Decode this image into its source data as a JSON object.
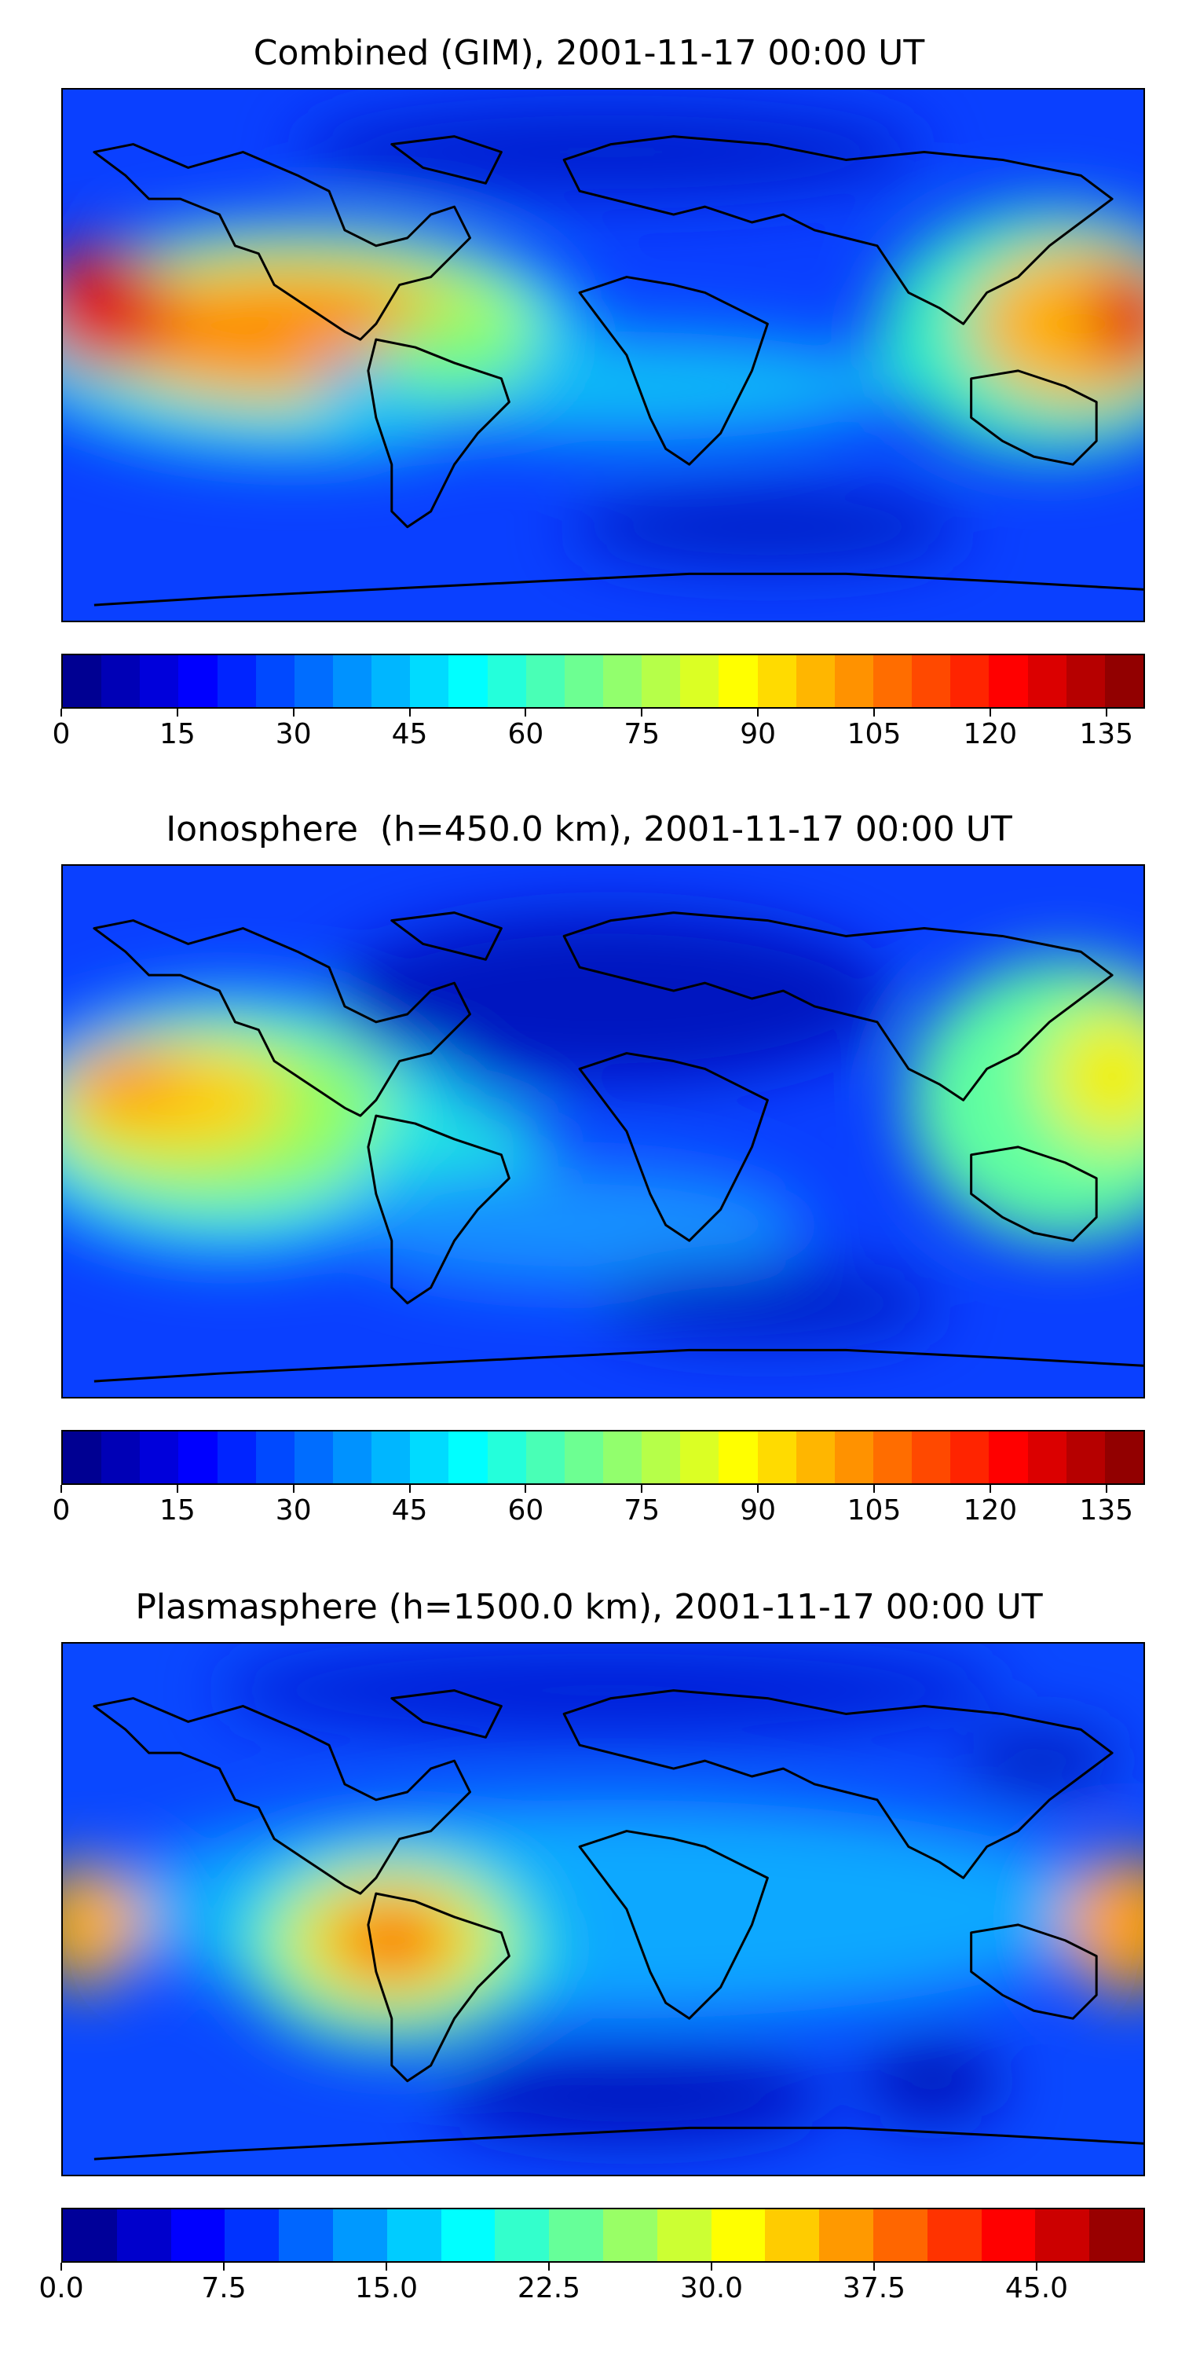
{
  "panels": [
    {
      "title": "Combined (GIM), 2001-11-17 00:00 UT",
      "colorbar_ticks": [
        "0",
        "15",
        "30",
        "45",
        "60",
        "75",
        "90",
        "105",
        "120",
        "135"
      ],
      "colorbar_range": [
        0,
        140
      ],
      "colorbar_levels": 28
    },
    {
      "title": "Ionosphere  (h=450.0 km), 2001-11-17 00:00 UT",
      "colorbar_ticks": [
        "0",
        "15",
        "30",
        "45",
        "60",
        "75",
        "90",
        "105",
        "120",
        "135"
      ],
      "colorbar_range": [
        0,
        140
      ],
      "colorbar_levels": 28
    },
    {
      "title": "Plasmasphere (h=1500.0 km), 2001-11-17 00:00 UT",
      "colorbar_ticks": [
        "0.0",
        "7.5",
        "15.0",
        "22.5",
        "30.0",
        "37.5",
        "45.0"
      ],
      "colorbar_range": [
        0,
        50
      ],
      "colorbar_levels": 20
    }
  ],
  "colormap": "jet",
  "colors": {
    "coastline": "#000000"
  }
}
